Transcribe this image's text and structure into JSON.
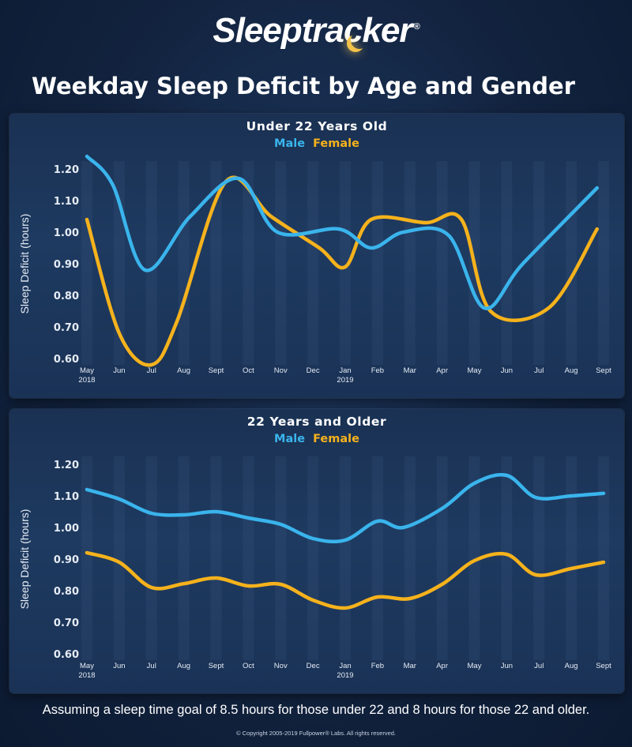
{
  "header": {
    "logo_text": "Sleeptracker",
    "logo_tm": "®",
    "title": "Weekday Sleep Deficit by Age and Gender"
  },
  "colors": {
    "male": "#3ab4ec",
    "female": "#f5b21c",
    "text": "#ffffff",
    "axis_text": "#e6ecf5"
  },
  "chart_data": [
    {
      "type": "line",
      "title": "Under 22 Years Old",
      "ylabel": "Sleep Deficit (hours)",
      "xlabel": "",
      "ylim": [
        0.6,
        1.2
      ],
      "yticks": [
        "0.60",
        "0.70",
        "0.80",
        "0.90",
        "1.00",
        "1.10",
        "1.20"
      ],
      "x_tick_labels": [
        {
          "label": "May",
          "sub": "2018"
        },
        {
          "label": "Jun",
          "sub": ""
        },
        {
          "label": "Jul",
          "sub": ""
        },
        {
          "label": "Aug",
          "sub": ""
        },
        {
          "label": "Sept",
          "sub": ""
        },
        {
          "label": "Oct",
          "sub": ""
        },
        {
          "label": "Nov",
          "sub": ""
        },
        {
          "label": "Dec",
          "sub": ""
        },
        {
          "label": "Jan",
          "sub": "2019"
        },
        {
          "label": "Feb",
          "sub": ""
        },
        {
          "label": "Mar",
          "sub": ""
        },
        {
          "label": "Apr",
          "sub": ""
        },
        {
          "label": "May",
          "sub": ""
        },
        {
          "label": "Jun",
          "sub": ""
        },
        {
          "label": "Jul",
          "sub": ""
        },
        {
          "label": "Aug",
          "sub": ""
        },
        {
          "label": "Sept",
          "sub": ""
        }
      ],
      "legend": "top-center",
      "series": [
        {
          "name": "Male",
          "color": "#3ab4ec",
          "points": [
            [
              0,
              1.24
            ],
            [
              0.8,
              1.15
            ],
            [
              1.8,
              0.88
            ],
            [
              3.2,
              1.05
            ],
            [
              4.7,
              1.17
            ],
            [
              5.9,
              1.0
            ],
            [
              7.8,
              1.01
            ],
            [
              8.8,
              0.95
            ],
            [
              9.8,
              1.0
            ],
            [
              11.2,
              0.99
            ],
            [
              12.3,
              0.76
            ],
            [
              13.5,
              0.9
            ],
            [
              15.8,
              1.14
            ]
          ]
        },
        {
          "name": "Female",
          "color": "#f5b21c",
          "points": [
            [
              0,
              1.04
            ],
            [
              1.0,
              0.68
            ],
            [
              2.0,
              0.58
            ],
            [
              2.8,
              0.72
            ],
            [
              4.3,
              1.16
            ],
            [
              5.7,
              1.05
            ],
            [
              7.2,
              0.95
            ],
            [
              8.0,
              0.89
            ],
            [
              8.8,
              1.04
            ],
            [
              10.5,
              1.03
            ],
            [
              11.6,
              1.04
            ],
            [
              12.5,
              0.75
            ],
            [
              14.3,
              0.76
            ],
            [
              15.8,
              1.01
            ]
          ]
        }
      ]
    },
    {
      "type": "line",
      "title": "22 Years and Older",
      "ylabel": "Sleep Deficit (hours)",
      "xlabel": "",
      "ylim": [
        0.6,
        1.2
      ],
      "yticks": [
        "0.60",
        "0.70",
        "0.80",
        "0.90",
        "1.00",
        "1.10",
        "1.20"
      ],
      "x_tick_labels": [
        {
          "label": "May",
          "sub": "2018"
        },
        {
          "label": "Jun",
          "sub": ""
        },
        {
          "label": "Jul",
          "sub": ""
        },
        {
          "label": "Aug",
          "sub": ""
        },
        {
          "label": "Sept",
          "sub": ""
        },
        {
          "label": "Oct",
          "sub": ""
        },
        {
          "label": "Nov",
          "sub": ""
        },
        {
          "label": "Dec",
          "sub": ""
        },
        {
          "label": "Jan",
          "sub": "2019"
        },
        {
          "label": "Feb",
          "sub": ""
        },
        {
          "label": "Mar",
          "sub": ""
        },
        {
          "label": "Apr",
          "sub": ""
        },
        {
          "label": "May",
          "sub": ""
        },
        {
          "label": "Jun",
          "sub": ""
        },
        {
          "label": "Jul",
          "sub": ""
        },
        {
          "label": "Aug",
          "sub": ""
        },
        {
          "label": "Sept",
          "sub": ""
        }
      ],
      "legend": "top-center",
      "series": [
        {
          "name": "Male",
          "color": "#3ab4ec",
          "points": [
            [
              0,
              1.12
            ],
            [
              1.0,
              1.09
            ],
            [
              2.0,
              1.045
            ],
            [
              3.0,
              1.04
            ],
            [
              4.0,
              1.05
            ],
            [
              5.0,
              1.03
            ],
            [
              6.0,
              1.01
            ],
            [
              7.0,
              0.965
            ],
            [
              8.0,
              0.96
            ],
            [
              9.0,
              1.02
            ],
            [
              9.8,
              1.0
            ],
            [
              11.0,
              1.06
            ],
            [
              12.0,
              1.14
            ],
            [
              13.0,
              1.165
            ],
            [
              13.9,
              1.095
            ],
            [
              15.0,
              1.1
            ],
            [
              16.0,
              1.108
            ]
          ]
        },
        {
          "name": "Female",
          "color": "#f5b21c",
          "points": [
            [
              0,
              0.92
            ],
            [
              1.0,
              0.89
            ],
            [
              2.0,
              0.81
            ],
            [
              3.0,
              0.822
            ],
            [
              4.0,
              0.84
            ],
            [
              5.0,
              0.815
            ],
            [
              6.0,
              0.82
            ],
            [
              7.0,
              0.77
            ],
            [
              8.0,
              0.745
            ],
            [
              9.0,
              0.78
            ],
            [
              10.0,
              0.775
            ],
            [
              11.0,
              0.82
            ],
            [
              12.0,
              0.895
            ],
            [
              13.0,
              0.915
            ],
            [
              13.9,
              0.85
            ],
            [
              15.0,
              0.87
            ],
            [
              16.0,
              0.89
            ]
          ]
        }
      ]
    }
  ],
  "footnote": "Assuming a sleep time goal of 8.5 hours for those under 22 and 8 hours for those 22 and older.",
  "copyright": "© Copyright 2005-2019 Fullpower® Labs. All rights reserved."
}
